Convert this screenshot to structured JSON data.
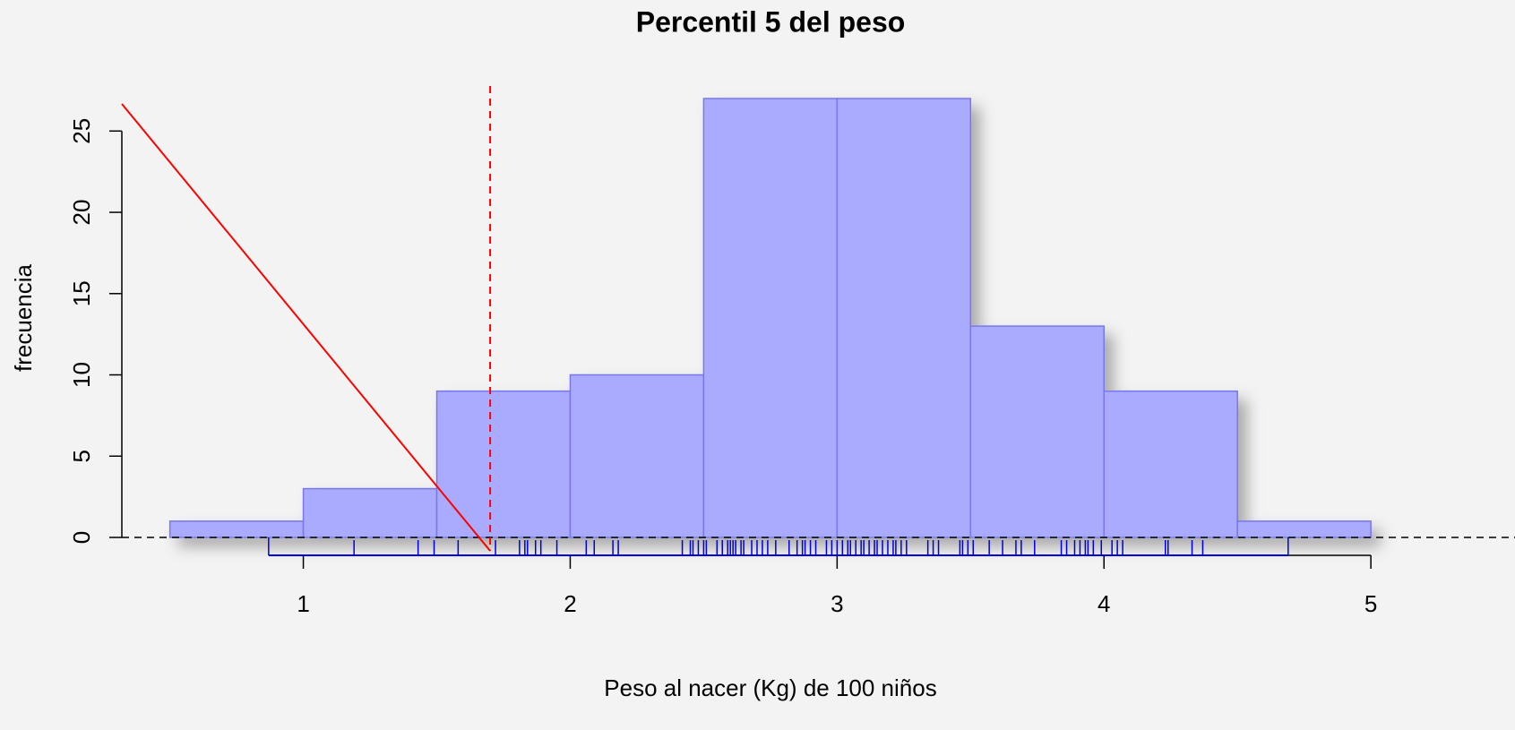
{
  "chart_data": {
    "type": "histogram",
    "title": "Percentil 5 del peso",
    "x_label": "Peso al nacer (Kg) de 100 niños",
    "y_label": "frecuencia",
    "bins": [
      0.5,
      1,
      1.5,
      2,
      2.5,
      3,
      3.5,
      4,
      4.5,
      5
    ],
    "values": [
      1,
      3,
      9,
      10,
      27,
      27,
      13,
      9,
      1
    ],
    "color": "#aaaaff",
    "edge_color": "#7777ee",
    "xlim": [
      0.32,
      5.54
    ],
    "ylim": [
      0,
      27
    ],
    "xticks": [
      1,
      2,
      3,
      4,
      5
    ],
    "yticks": [
      0,
      5,
      10,
      15,
      20,
      25
    ],
    "percentile_line": {
      "x": 1.7,
      "color": "#ff0000"
    },
    "rug": {
      "color": "#0000dd",
      "x": [
        0.87,
        1.19,
        1.43,
        1.49,
        1.58,
        1.72,
        1.81,
        1.83,
        1.84,
        1.87,
        1.89,
        1.95,
        2.06,
        2.09,
        2.16,
        2.18,
        2.42,
        2.45,
        2.46,
        2.48,
        2.5,
        2.51,
        2.55,
        2.57,
        2.59,
        2.6,
        2.61,
        2.62,
        2.64,
        2.65,
        2.68,
        2.7,
        2.72,
        2.74,
        2.77,
        2.82,
        2.85,
        2.87,
        2.88,
        2.9,
        2.92,
        2.96,
        2.98,
        3.0,
        3.02,
        3.04,
        3.05,
        3.07,
        3.09,
        3.1,
        3.12,
        3.14,
        3.15,
        3.17,
        3.19,
        3.21,
        3.22,
        3.24,
        3.26,
        3.34,
        3.36,
        3.38,
        3.46,
        3.47,
        3.49,
        3.51,
        3.57,
        3.62,
        3.67,
        3.69,
        3.74,
        3.84,
        3.86,
        3.89,
        3.91,
        3.93,
        3.94,
        3.96,
        3.99,
        4.03,
        4.05,
        4.07,
        4.23,
        4.24,
        4.33,
        4.37,
        4.69
      ]
    }
  }
}
